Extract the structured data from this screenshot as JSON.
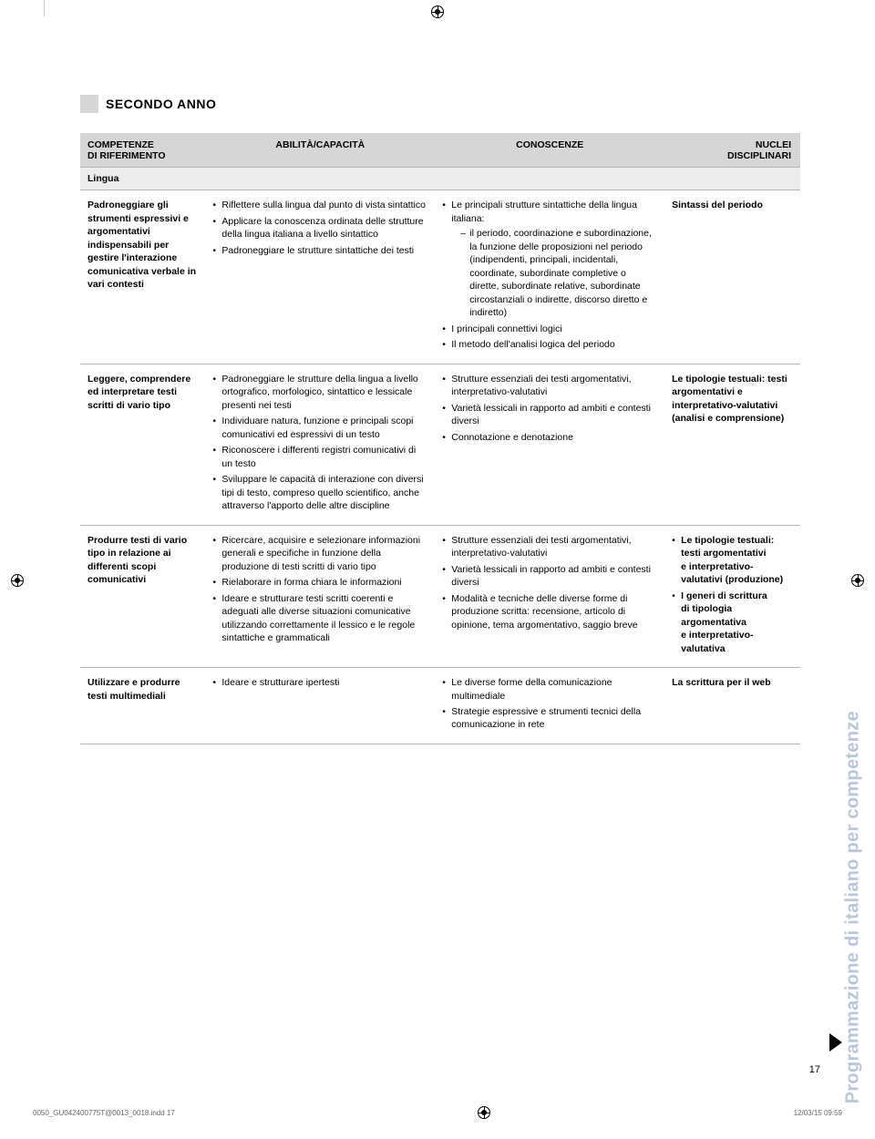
{
  "page": {
    "section_title": "SECONDO ANNO",
    "side_label": "Programmazione di italiano per competenze",
    "page_number": "17",
    "footer_left": "0050_GU042400775T@0013_0018.indd   17",
    "footer_right": "12/03/15   09:59"
  },
  "headers": {
    "c1a": "COMPETENZE",
    "c1b": "DI RIFERIMENTO",
    "c2": "ABILITÀ/CAPACITÀ",
    "c3": "CONOSCENZE",
    "c4a": "NUCLEI",
    "c4b": "DISCIPLINARI"
  },
  "subhead": "Lingua",
  "rows": [
    {
      "col1": "Padroneggiare gli strumenti espressivi e argomentativi indispensabili per gestire l'interazione comunicativa verbale in vari contesti",
      "col2": [
        "Riflettere sulla lingua dal punto di vista sintattico",
        "Applicare la conoscenza ordinata delle strutture della lingua italiana a livello sintattico",
        "Padroneggiare le strutture sintattiche dei testi"
      ],
      "col3_complex": {
        "lead": "Le principali strutture sintattiche della lingua italiana:",
        "sub": "il periodo, coordinazione e subordinazione, la funzione delle proposizioni nel periodo (indipendenti, principali, incidentali, coordinate, subordinate completive o dirette, subordinate relative, subordinate circostanziali o indirette, discorso diretto e indiretto)",
        "rest": [
          "I principali connettivi logici",
          "Il metodo dell'analisi logica del periodo"
        ]
      },
      "col4": "<span class='strong'>Sintassi del&nbsp;periodo</span>"
    },
    {
      "col1": "Leggere, comprendere ed interpretare testi scritti di vario tipo",
      "col2": [
        "Padroneggiare le strutture della lingua a livello ortografico, morfologico, sintattico e lessicale presenti nei testi",
        "Individuare natura, funzione e principali scopi comunicativi ed espressivi di un testo",
        "Riconoscere i differenti registri comunicativi di un testo",
        "Sviluppare le capacità di interazione con diversi tipi di testo, compreso quello scientifico, anche attraverso l'apporto delle altre discipline"
      ],
      "col3": [
        "Strutture essenziali dei testi argomentativi, interpretativo-valutativi",
        "Varietà lessicali in rapporto ad ambiti e contesti diversi",
        "Connotazione e denotazione"
      ],
      "col4": "<span class='strong'>Le tipologie testuali: testi argomentativi e interpretativo-valutativi (analisi e comprensione)</span>"
    },
    {
      "col1": "Produrre testi di vario tipo in relazione ai differenti scopi comunicativi",
      "col2": [
        "Ricercare, acquisire e selezionare informazioni generali e specifiche in funzione della produzione di testi scritti di vario tipo",
        "Rielaborare in forma chiara le informazioni",
        "Ideare e strutturare testi scritti coerenti e adeguati alle diverse situazioni comunicative utilizzando correttamente il lessico e le regole sintattiche e grammaticali"
      ],
      "col3": [
        "Strutture essenziali dei testi argomentativi, interpretativo-valutativi",
        "Varietà lessicali in rapporto ad ambiti e contesti diversi",
        "Modalità e tecniche delle diverse forme di produzione scritta: recensione, articolo di opinione, tema argomentativo, saggio breve"
      ],
      "col4_list": [
        "<span class='strong'>Le tipologie testuali: testi argomentativi e&nbsp;interpretativo-valutativi (produzione)</span>",
        "<span class='strong'>I generi di&nbsp;scrittura di&nbsp;tipologia argomentativa e&nbsp;interpretativo-valutativa</span>"
      ]
    },
    {
      "col1": "Utilizzare e produrre testi multimediali",
      "col2": [
        "Ideare e strutturare ipertesti"
      ],
      "col3": [
        "Le diverse forme della comunicazione multimediale",
        "Strategie espressive e strumenti tecnici della comunicazione in rete"
      ],
      "col4": "<span class='strong'>La scrittura per il web</span>"
    }
  ]
}
